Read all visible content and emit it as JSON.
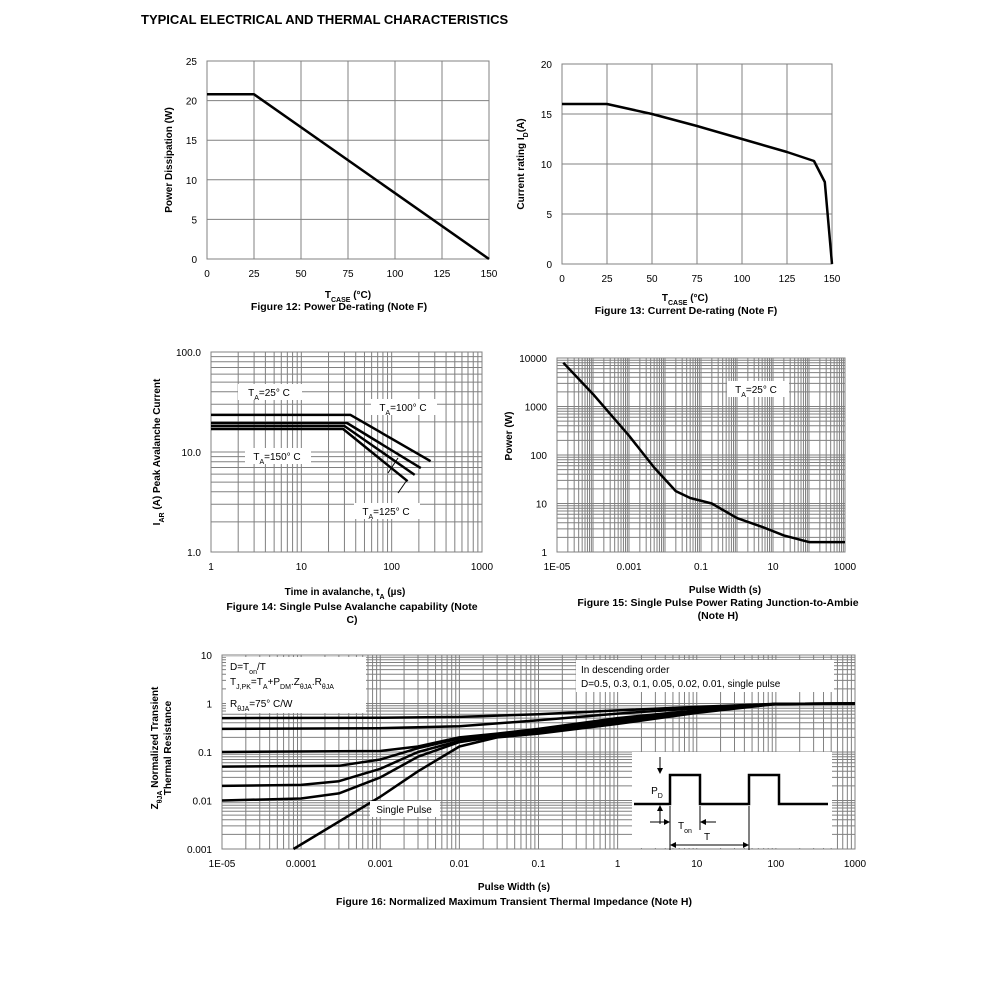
{
  "page_title": "TYPICAL ELECTRICAL AND THERMAL CHARACTERISTICS",
  "chart_data": [
    {
      "id": "fig12",
      "type": "line",
      "caption": "Figure 12: Power De-rating (Note F)",
      "xlabel": "TCASE (°C)",
      "ylabel": "Power Dissipation (W)",
      "xlim": [
        0,
        150
      ],
      "ylim": [
        0,
        25
      ],
      "x_ticks": [
        0,
        25,
        50,
        75,
        100,
        125,
        150
      ],
      "y_ticks": [
        0,
        5,
        10,
        15,
        20,
        25
      ],
      "x_tick_labels": [
        "0",
        "25",
        "50",
        "75",
        "100",
        "125",
        "150"
      ],
      "y_tick_labels": [
        "0",
        "5",
        "10",
        "15",
        "20",
        "25"
      ],
      "grid": true,
      "series": [
        {
          "x": [
            0,
            25,
            150
          ],
          "y": [
            20.8,
            20.8,
            0
          ]
        }
      ]
    },
    {
      "id": "fig13",
      "type": "line",
      "caption": "Figure 13: Current De-rating (Note F)",
      "xlabel": "TCASE (°C)",
      "ylabel": "Current rating ID(A)",
      "xlim": [
        0,
        150
      ],
      "ylim": [
        0,
        20
      ],
      "x_ticks": [
        0,
        25,
        50,
        75,
        100,
        125,
        150
      ],
      "y_ticks": [
        0,
        5,
        10,
        15,
        20
      ],
      "x_tick_labels": [
        "0",
        "25",
        "50",
        "75",
        "100",
        "125",
        "150"
      ],
      "y_tick_labels": [
        "0",
        "5",
        "10",
        "15",
        "20"
      ],
      "grid": true,
      "series": [
        {
          "x": [
            0,
            25,
            50,
            75,
            100,
            125,
            140,
            146,
            150
          ],
          "y": [
            16,
            16,
            15,
            13.8,
            12.5,
            11.2,
            10.3,
            8.2,
            0
          ]
        }
      ]
    },
    {
      "id": "fig14",
      "type": "line",
      "caption": "Figure 14: Single Pulse Avalanche capability (Note C)",
      "xlabel": "Time in avalanche, tA (µs)",
      "ylabel": "IAR (A) Peak Avalanche Current",
      "xscale": "log",
      "yscale": "log",
      "xlim": [
        1,
        1000
      ],
      "ylim": [
        1,
        100
      ],
      "x_ticks": [
        1,
        10,
        100,
        1000
      ],
      "y_ticks": [
        1,
        10,
        100
      ],
      "x_tick_labels": [
        "1",
        "10",
        "100",
        "1000"
      ],
      "y_tick_labels": [
        "1.0",
        "10.0",
        "100.0"
      ],
      "grid": true,
      "annotations": [
        "TA=25° C",
        "TA=100° C",
        "TA=150° C",
        "TA=125° C"
      ],
      "series": [
        {
          "x": [
            1,
            35,
            270
          ],
          "y": [
            23.5,
            23.5,
            8.1
          ]
        },
        {
          "x": [
            1,
            32,
            210
          ],
          "y": [
            19.5,
            19.5,
            6.9
          ]
        },
        {
          "x": [
            1,
            30,
            180
          ],
          "y": [
            18.2,
            18.2,
            5.9
          ]
        },
        {
          "x": [
            1,
            29,
            150
          ],
          "y": [
            17.0,
            17.0,
            5.1
          ]
        }
      ]
    },
    {
      "id": "fig15",
      "type": "line",
      "caption": "Figure 15: Single Pulse Power Rating Junction-to-Ambie (Note H)",
      "xlabel": "Pulse Width (s)",
      "ylabel": "Power (W)",
      "xscale": "log",
      "yscale": "log",
      "xlim": [
        1e-05,
        1000
      ],
      "ylim": [
        1,
        10000
      ],
      "x_ticks": [
        1e-05,
        0.001,
        0.1,
        10,
        1000
      ],
      "y_ticks": [
        1,
        10,
        100,
        1000,
        10000
      ],
      "x_tick_labels": [
        "1E-05",
        "0.001",
        "0.1",
        "10",
        "1000"
      ],
      "y_tick_labels": [
        "1",
        "10",
        "100",
        "1000",
        "10000"
      ],
      "grid": true,
      "annotations": [
        "TA=25° C"
      ],
      "series": [
        {
          "x": [
            1.5e-05,
            0.0001,
            0.001,
            0.005,
            0.02,
            0.05,
            0.2,
            1,
            5,
            20,
            100,
            1000
          ],
          "y": [
            8000,
            1800,
            250,
            55,
            18,
            13,
            10,
            5,
            3.3,
            2.2,
            1.6,
            1.6
          ]
        }
      ]
    },
    {
      "id": "fig16",
      "type": "line",
      "caption": "Figure 16: Normalized Maximum Transient Thermal Impedance (Note H)",
      "xlabel": "Pulse Width (s)",
      "ylabel": "ZθJA Normalized Transient Thermal Resistance",
      "xscale": "log",
      "yscale": "log",
      "xlim": [
        1e-05,
        1000
      ],
      "ylim": [
        0.001,
        10
      ],
      "x_ticks": [
        1e-05,
        0.0001,
        0.001,
        0.01,
        0.1,
        1,
        10,
        100,
        1000
      ],
      "y_ticks": [
        0.001,
        0.01,
        0.1,
        1,
        10
      ],
      "x_tick_labels": [
        "1E-05",
        "0.0001",
        "0.001",
        "0.01",
        "0.1",
        "1",
        "10",
        "100",
        "1000"
      ],
      "y_tick_labels": [
        "0.001",
        "0.01",
        "0.1",
        "1",
        "10"
      ],
      "grid": true,
      "annotations": [
        "D=Ton/T",
        "TJ,PK=TA+PDM.ZθJA.RθJA",
        "RθJA=75° C/W",
        "In descending order",
        "D=0.5, 0.3, 0.1, 0.05, 0.02, 0.01, single pulse",
        "Single Pulse",
        "PD",
        "Ton",
        "T"
      ],
      "series": [
        {
          "name": "D=0.5",
          "x": [
            1e-05,
            0.001,
            0.01,
            0.1,
            1,
            10,
            100,
            1000
          ],
          "y": [
            0.5,
            0.51,
            0.53,
            0.6,
            0.72,
            0.85,
            0.98,
            1.0
          ]
        },
        {
          "name": "D=0.3",
          "x": [
            1e-05,
            0.001,
            0.01,
            0.1,
            1,
            10,
            100,
            1000
          ],
          "y": [
            0.3,
            0.31,
            0.34,
            0.45,
            0.62,
            0.8,
            0.98,
            1.0
          ]
        },
        {
          "name": "D=0.1",
          "x": [
            1e-05,
            0.001,
            0.003,
            0.01,
            0.03,
            0.1,
            1,
            10,
            100,
            1000
          ],
          "y": [
            0.1,
            0.105,
            0.13,
            0.2,
            0.24,
            0.3,
            0.5,
            0.72,
            0.98,
            1.0
          ]
        },
        {
          "name": "D=0.05",
          "x": [
            1e-05,
            0.0003,
            0.001,
            0.003,
            0.01,
            0.03,
            0.1,
            1,
            10,
            100,
            1000
          ],
          "y": [
            0.05,
            0.052,
            0.07,
            0.12,
            0.19,
            0.23,
            0.27,
            0.45,
            0.7,
            0.98,
            1.0
          ]
        },
        {
          "name": "D=0.02",
          "x": [
            1e-05,
            0.0001,
            0.0003,
            0.001,
            0.003,
            0.01,
            0.03,
            0.1,
            1,
            10,
            100,
            1000
          ],
          "y": [
            0.02,
            0.021,
            0.025,
            0.045,
            0.1,
            0.17,
            0.22,
            0.26,
            0.42,
            0.68,
            0.98,
            1.0
          ]
        },
        {
          "name": "D=0.01",
          "x": [
            1e-05,
            0.0001,
            0.0003,
            0.001,
            0.003,
            0.01,
            0.03,
            0.1,
            1,
            10,
            100,
            1000
          ],
          "y": [
            0.01,
            0.011,
            0.014,
            0.03,
            0.08,
            0.16,
            0.21,
            0.25,
            0.4,
            0.66,
            0.98,
            1.0
          ]
        },
        {
          "name": "single pulse",
          "x": [
            8e-05,
            0.001,
            0.003,
            0.01,
            0.03,
            0.1,
            1,
            10,
            100,
            1000
          ],
          "y": [
            0.001,
            0.012,
            0.04,
            0.13,
            0.2,
            0.24,
            0.38,
            0.64,
            0.97,
            1.0
          ]
        }
      ]
    }
  ]
}
